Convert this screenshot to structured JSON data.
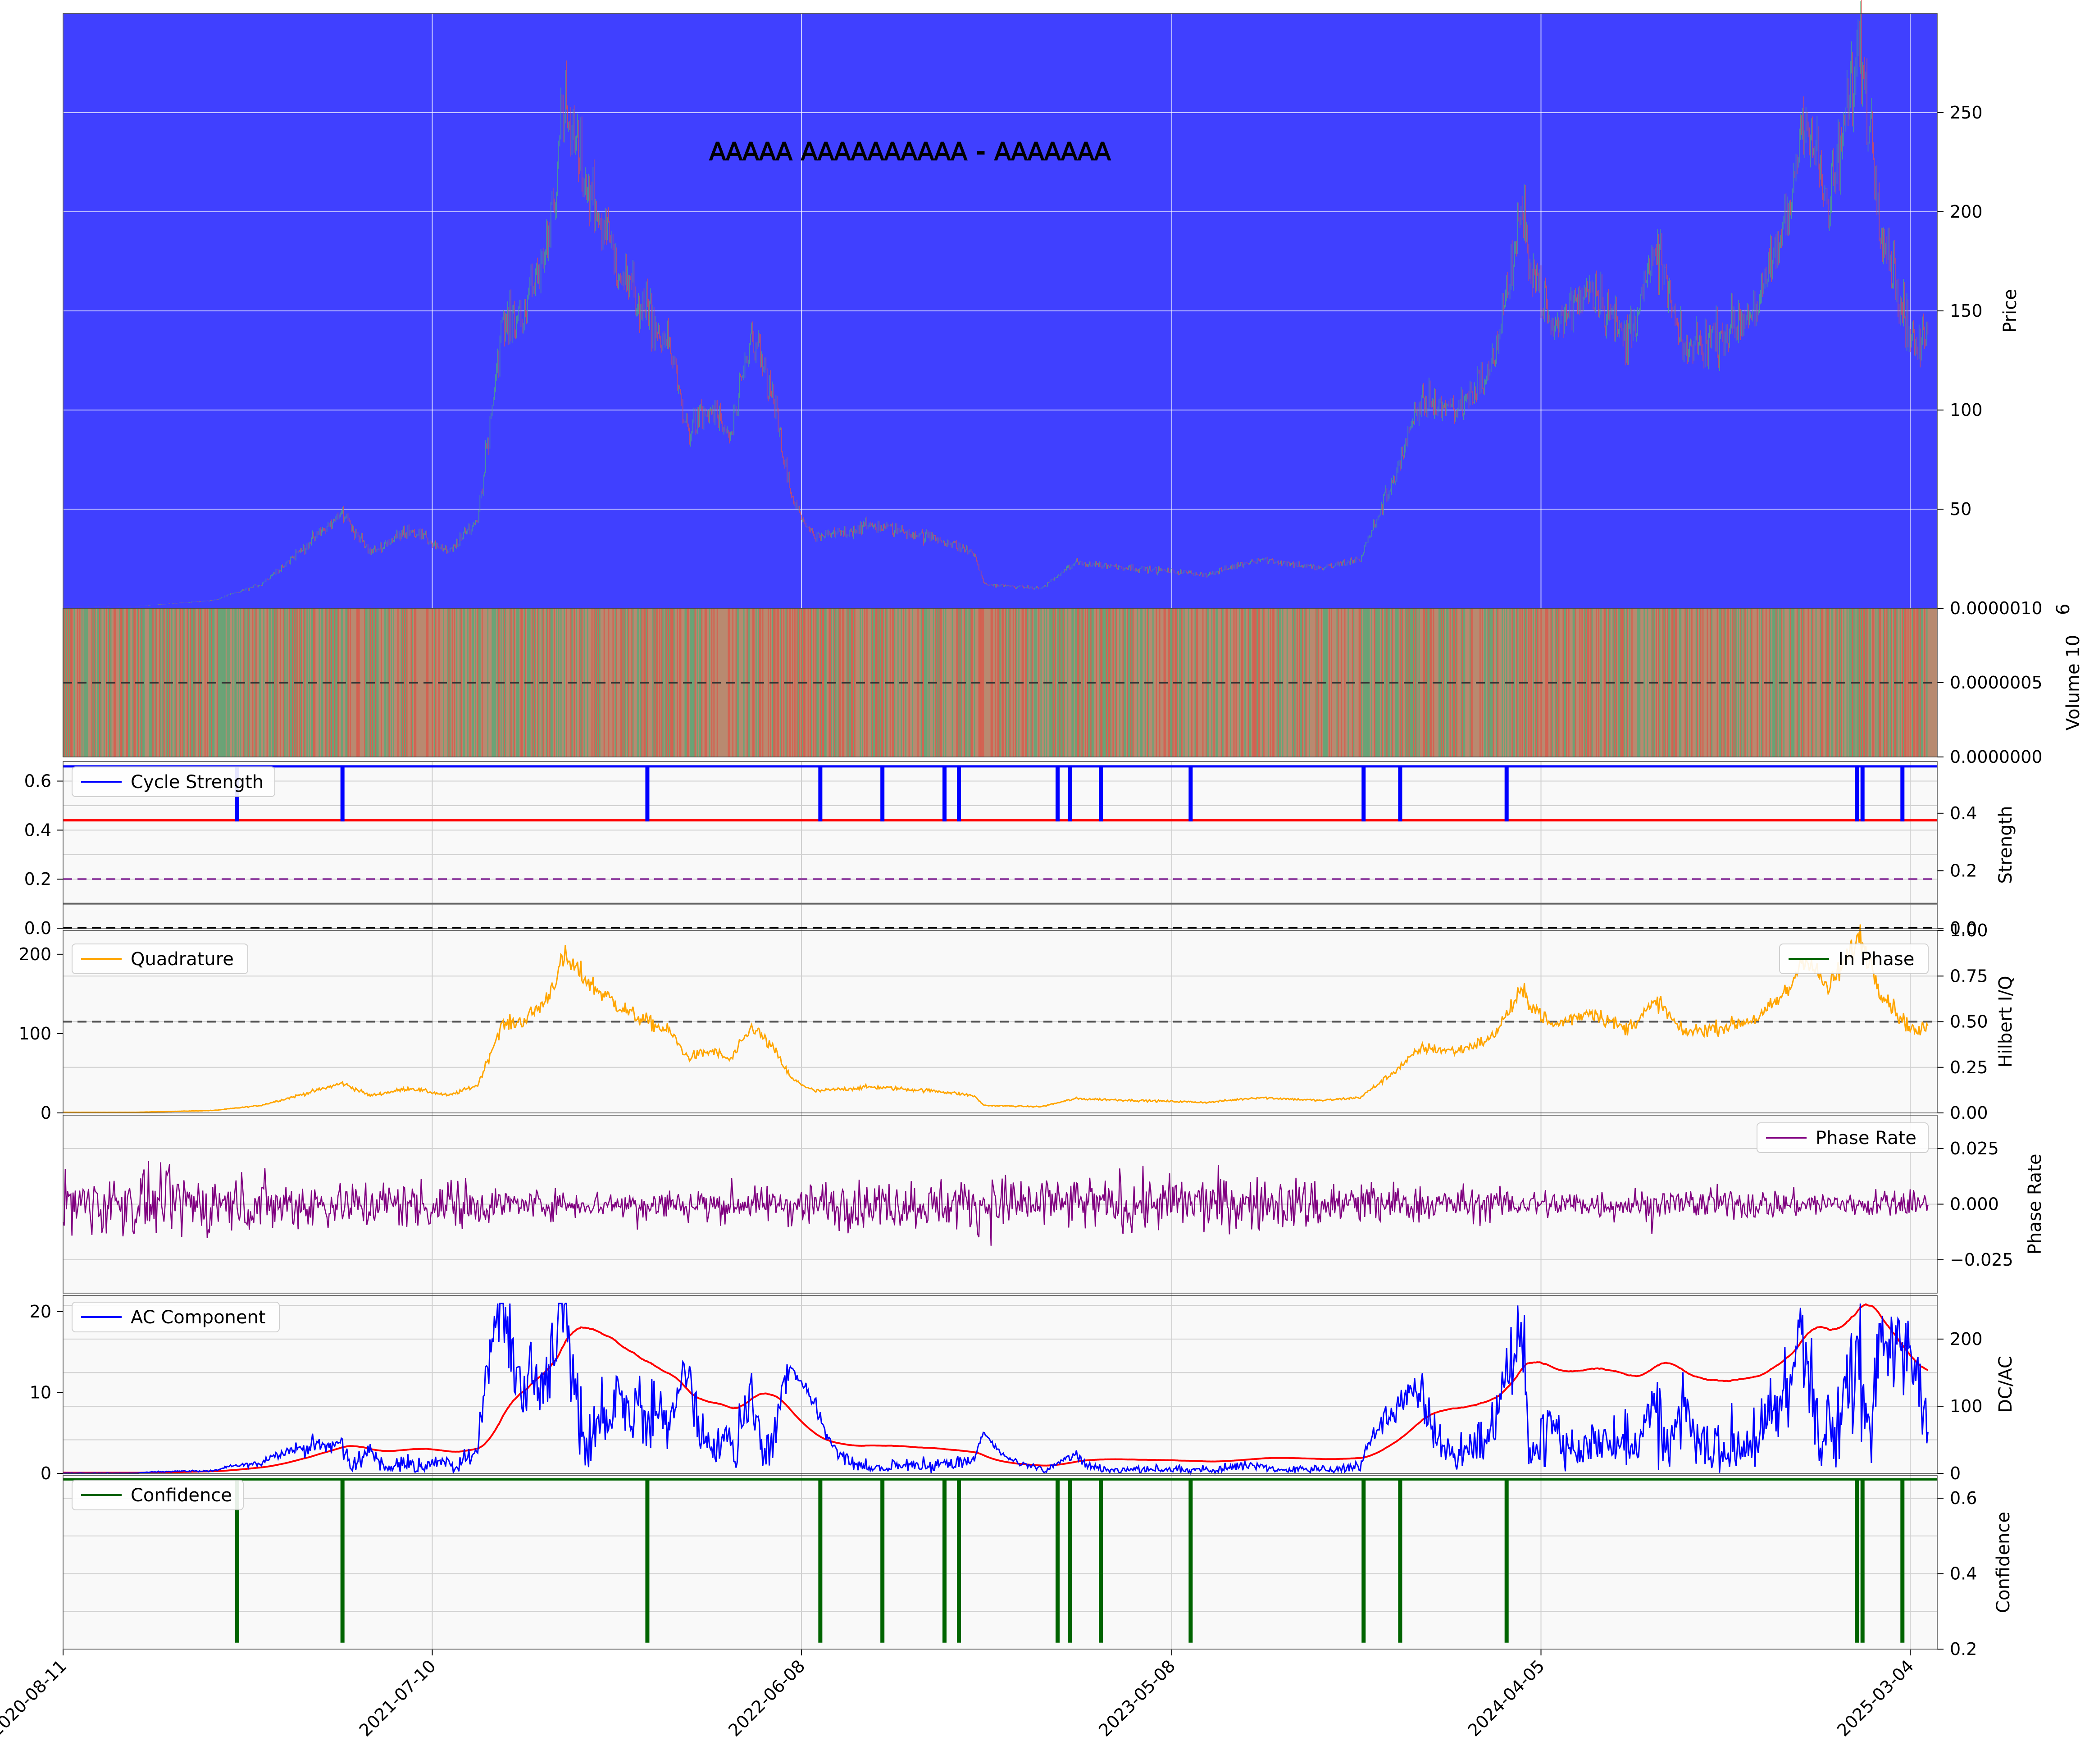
{
  "title": "𝖠𝖠𝖠𝖠𝖠 𝖠𝖠𝖠𝖠𝖠𝖠𝖠𝖠𝖠𝖠 - 𝖠𝖠𝖠𝖠𝖠𝖠𝖠",
  "colors": {
    "price_bg": "#4040ff",
    "panel_bg": "#f9f9f9",
    "up": "#4caf7a",
    "down": "#e04c4c",
    "cycle": "#0000ff",
    "threshold": "#ff0000",
    "quadrature": "#ffa500",
    "inphase": "#006400",
    "phase_rate": "#800080",
    "ac": "#0000ff",
    "dc": "#ff0000",
    "confidence": "#006400"
  },
  "chart_data": {
    "type": "line",
    "x_dates": [
      "2020-08-11",
      "2021-07-10",
      "2022-06-08",
      "2023-05-08",
      "2024-04-05",
      "2025-03-04"
    ],
    "panels": {
      "price": {
        "ylabel": "Price",
        "yticks": [
          "50",
          "100",
          "150",
          "200",
          "250"
        ],
        "ylim": [
          0,
          300
        ],
        "anchors": [
          [
            "2020-08-11",
            1
          ],
          [
            "2020-10-15",
            1
          ],
          [
            "2020-12-25",
            4
          ],
          [
            "2021-02-05",
            12
          ],
          [
            "2021-03-15",
            30
          ],
          [
            "2021-04-20",
            48
          ],
          [
            "2021-05-15",
            28
          ],
          [
            "2021-06-20",
            40
          ],
          [
            "2021-07-25",
            28
          ],
          [
            "2021-08-20",
            45
          ],
          [
            "2021-09-10",
            140
          ],
          [
            "2021-10-01",
            150
          ],
          [
            "2021-10-20",
            180
          ],
          [
            "2021-11-06",
            250
          ],
          [
            "2021-12-05",
            200
          ],
          [
            "2022-01-05",
            160
          ],
          [
            "2022-02-10",
            130
          ],
          [
            "2022-02-25",
            90
          ],
          [
            "2022-03-20",
            100
          ],
          [
            "2022-04-05",
            85
          ],
          [
            "2022-04-25",
            140
          ],
          [
            "2022-05-15",
            100
          ],
          [
            "2022-05-30",
            55
          ],
          [
            "2022-06-20",
            35
          ],
          [
            "2022-08-10",
            42
          ],
          [
            "2022-10-10",
            35
          ],
          [
            "2022-11-10",
            28
          ],
          [
            "2022-11-20",
            12
          ],
          [
            "2023-01-10",
            10
          ],
          [
            "2023-02-10",
            23
          ],
          [
            "2023-04-10",
            20
          ],
          [
            "2023-06-10",
            17
          ],
          [
            "2023-07-25",
            25
          ],
          [
            "2023-09-20",
            20
          ],
          [
            "2023-10-25",
            25
          ],
          [
            "2023-11-20",
            60
          ],
          [
            "2023-12-20",
            105
          ],
          [
            "2024-01-20",
            100
          ],
          [
            "2024-02-20",
            120
          ],
          [
            "2024-03-18",
            195
          ],
          [
            "2024-04-15",
            140
          ],
          [
            "2024-05-20",
            165
          ],
          [
            "2024-06-20",
            135
          ],
          [
            "2024-07-20",
            180
          ],
          [
            "2024-08-10",
            130
          ],
          [
            "2024-09-20",
            140
          ],
          [
            "2024-10-20",
            155
          ],
          [
            "2024-11-15",
            200
          ],
          [
            "2024-11-28",
            255
          ],
          [
            "2024-12-20",
            200
          ],
          [
            "2025-01-18",
            285
          ],
          [
            "2025-02-05",
            200
          ],
          [
            "2025-02-25",
            150
          ],
          [
            "2025-03-10",
            130
          ],
          [
            "2025-03-20",
            140
          ]
        ]
      },
      "volume": {
        "ylabel": "Volume",
        "scale_label": "10",
        "scale_exp": "6",
        "yticks": [
          "0.0000000",
          "0.0000005",
          "0.0000010"
        ],
        "ylim": [
          0,
          1e-06
        ],
        "reference_line": 5e-07
      },
      "strength": {
        "legend": "Cycle Strength",
        "ylabel": "Strength",
        "yticks_left": [
          "0.0",
          "0.2",
          "0.4",
          "0.6"
        ],
        "yticks_right": [
          "0.0",
          "0.2",
          "0.4"
        ],
        "ylim": [
          0,
          0.68
        ],
        "base_value": 0.66,
        "dip_value": 0.44,
        "threshold": 0.44,
        "dashed_level": 0.2,
        "solid_level": 0.1,
        "dip_dates": [
          "2021-01-15",
          "2021-04-20",
          "2022-01-20",
          "2022-06-25",
          "2022-08-20",
          "2022-10-15",
          "2022-10-28",
          "2023-01-25",
          "2023-02-05",
          "2023-03-05",
          "2023-05-25",
          "2023-10-28",
          "2023-11-30",
          "2024-03-05",
          "2025-01-15",
          "2025-01-20",
          "2025-02-25"
        ]
      },
      "hilbert": {
        "legend_left": "Quadrature",
        "legend_right": "In Phase",
        "ylabel": "Hilbert I/Q",
        "yticks_left": [
          "0",
          "100",
          "200"
        ],
        "yticks_right": [
          "0.00",
          "0.25",
          "0.50",
          "0.75",
          "1.00"
        ],
        "ylim_left": [
          0,
          230
        ],
        "ylim_right": [
          0,
          1
        ],
        "dashed_level_right": 0.5,
        "quadrature_scale": 0.78
      },
      "phase_rate": {
        "legend": "Phase Rate",
        "ylabel": "Phase Rate",
        "yticks": [
          "−0.025",
          "0.000",
          "0.025"
        ],
        "ylim": [
          -0.04,
          0.04
        ]
      },
      "dcac": {
        "legend": "AC Component",
        "ylabel": "DC/AC",
        "yticks_left": [
          "0",
          "10",
          "20"
        ],
        "yticks_right": [
          "0",
          "100",
          "200"
        ],
        "ylim_left": [
          0,
          22
        ],
        "ylim_right": [
          0,
          265
        ]
      },
      "confidence": {
        "legend": "Confidence",
        "ylabel": "Confidence",
        "yticks": [
          "0.2",
          "0.4",
          "0.6"
        ],
        "ylim": [
          0.2,
          0.66
        ],
        "base_value": 0.65,
        "dip_value": 0.22
      }
    }
  }
}
